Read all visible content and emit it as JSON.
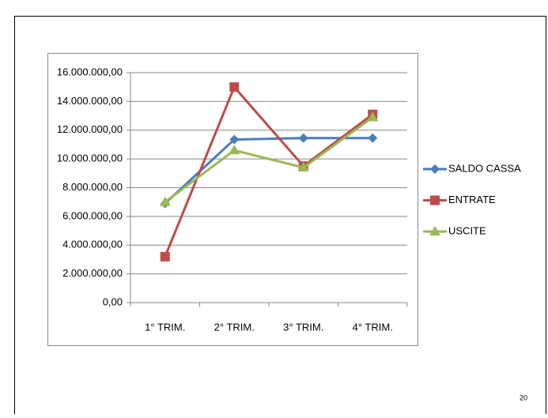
{
  "chart_data": {
    "type": "line",
    "categories": [
      "1° TRIM.",
      "2° TRIM.",
      "3° TRIM.",
      "4° TRIM."
    ],
    "series": [
      {
        "name": "SALDO CASSA",
        "color": "#4a7ebb",
        "marker": "diamond",
        "values": [
          6900000,
          11350000,
          11450000,
          11450000
        ]
      },
      {
        "name": "ENTRATE",
        "color": "#be4b48",
        "marker": "square",
        "values": [
          3200000,
          15000000,
          9500000,
          13100000
        ]
      },
      {
        "name": "USCITE",
        "color": "#98b954",
        "marker": "triangle",
        "values": [
          7000000,
          10600000,
          9400000,
          12900000
        ]
      }
    ],
    "ylim": [
      0,
      16000000
    ],
    "yticks": [
      {
        "value": 0,
        "label": "0,00"
      },
      {
        "value": 2000000,
        "label": "2.000.000,00"
      },
      {
        "value": 4000000,
        "label": "4.000.000,00"
      },
      {
        "value": 6000000,
        "label": "6.000.000,00"
      },
      {
        "value": 8000000,
        "label": "8.000.000,00"
      },
      {
        "value": 10000000,
        "label": "10.000.000,00"
      },
      {
        "value": 12000000,
        "label": "12.000.000,00"
      },
      {
        "value": 14000000,
        "label": "14.000.000,00"
      },
      {
        "value": 16000000,
        "label": "16.000.000,00"
      }
    ],
    "grid": true,
    "legend": "right"
  },
  "page_number": "20"
}
